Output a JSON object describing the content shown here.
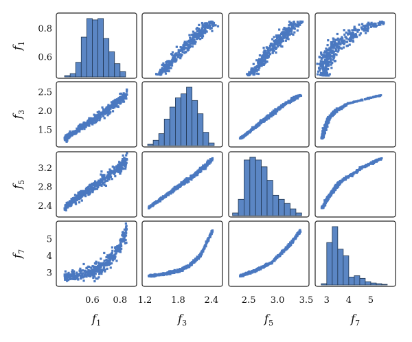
{
  "chart_data": {
    "type": "scatter",
    "subtype": "scatter-matrix",
    "title": "",
    "variables": [
      {
        "base": "f",
        "sub": "1",
        "ticks": [
          0.6,
          0.8
        ],
        "tick_labels": [
          "0.6",
          "0.8"
        ],
        "range": [
          0.36,
          0.9
        ],
        "ytick_labels": [
          "0.6",
          "0.8"
        ],
        "yrange": [
          0.47,
          0.89
        ]
      },
      {
        "base": "f",
        "sub": "3",
        "ticks": [
          1.2,
          1.8,
          2.4
        ],
        "tick_labels": [
          "1.2",
          "1.8",
          "2.4"
        ],
        "range": [
          1.2,
          2.55
        ],
        "yticks": [
          1.5,
          2.0,
          2.5
        ],
        "ytick_labels": [
          "1.5",
          "2.0",
          "2.5"
        ],
        "yrange": [
          1.12,
          2.7
        ]
      },
      {
        "base": "f",
        "sub": "5",
        "ticks": [
          2.5,
          3.0,
          3.5
        ],
        "tick_labels": [
          "2.5",
          "3.0",
          "3.5"
        ],
        "range": [
          2.2,
          3.5
        ],
        "yticks": [
          2.4,
          2.8,
          3.2
        ],
        "ytick_labels": [
          "2.4",
          "2.8",
          "3.2"
        ],
        "yrange": [
          2.22,
          3.48
        ]
      },
      {
        "base": "f",
        "sub": "7",
        "ticks": [
          3,
          4,
          5
        ],
        "tick_labels": [
          "3",
          "4",
          "5"
        ],
        "range": [
          2.6,
          6.0
        ],
        "yticks": [
          3,
          4,
          5
        ],
        "ytick_labels": [
          "3",
          "4",
          "5"
        ],
        "yrange": [
          2.35,
          5.9
        ]
      }
    ],
    "point_color": "#4a78c0",
    "bar_color": "#5b86c4",
    "bar_edge": "#1f3550",
    "diagonal": "histogram",
    "histograms": [
      {
        "var": "f1",
        "edges": [
          0.4,
          0.44,
          0.48,
          0.52,
          0.56,
          0.6,
          0.64,
          0.68,
          0.72,
          0.76,
          0.8,
          0.84
        ],
        "counts": [
          2,
          5,
          22,
          60,
          88,
          86,
          88,
          58,
          38,
          20,
          8
        ]
      },
      {
        "var": "f3",
        "edges": [
          1.25,
          1.35,
          1.45,
          1.55,
          1.65,
          1.75,
          1.85,
          1.95,
          2.05,
          2.15,
          2.25,
          2.35,
          2.45
        ],
        "counts": [
          2,
          8,
          18,
          40,
          58,
          72,
          78,
          88,
          68,
          48,
          20,
          4
        ]
      },
      {
        "var": "f5",
        "edges": [
          2.22,
          2.32,
          2.42,
          2.52,
          2.62,
          2.72,
          2.82,
          2.92,
          3.02,
          3.12,
          3.22,
          3.32,
          3.42
        ],
        "counts": [
          4,
          24,
          82,
          86,
          82,
          72,
          52,
          30,
          24,
          18,
          10,
          4
        ]
      },
      {
        "var": "f7",
        "edges": [
          2.75,
          3.0,
          3.25,
          3.5,
          3.75,
          4.0,
          4.25,
          4.5,
          4.75,
          5.0,
          5.25,
          5.5,
          5.75
        ],
        "counts": [
          2,
          64,
          88,
          54,
          44,
          12,
          14,
          10,
          5,
          3,
          2,
          1
        ]
      }
    ],
    "relationships": [
      {
        "x": "f1",
        "y": "f3",
        "curve": [
          [
            0.4,
            1.27
          ],
          [
            0.5,
            1.52
          ],
          [
            0.6,
            1.75
          ],
          [
            0.7,
            2.01
          ],
          [
            0.8,
            2.28
          ],
          [
            0.85,
            2.42
          ]
        ],
        "spread": 0.07
      },
      {
        "x": "f1",
        "y": "f5",
        "curve": [
          [
            0.4,
            2.36
          ],
          [
            0.5,
            2.58
          ],
          [
            0.6,
            2.77
          ],
          [
            0.7,
            3.0
          ],
          [
            0.8,
            3.22
          ],
          [
            0.85,
            3.36
          ]
        ],
        "spread": 0.07
      },
      {
        "x": "f1",
        "y": "f7",
        "curve": [
          [
            0.4,
            2.8
          ],
          [
            0.5,
            2.85
          ],
          [
            0.6,
            3.0
          ],
          [
            0.65,
            3.2
          ],
          [
            0.7,
            3.6
          ],
          [
            0.75,
            4.0
          ],
          [
            0.8,
            4.6
          ],
          [
            0.85,
            5.5
          ]
        ],
        "spread": 0.28
      },
      {
        "x": "f3",
        "y": "f5",
        "curve": [
          [
            1.27,
            2.36
          ],
          [
            1.5,
            2.55
          ],
          [
            1.8,
            2.8
          ],
          [
            2.1,
            3.05
          ],
          [
            2.42,
            3.38
          ]
        ],
        "spread": 0.025
      },
      {
        "x": "f3",
        "y": "f7",
        "curve": [
          [
            1.27,
            2.8
          ],
          [
            1.5,
            2.9
          ],
          [
            1.8,
            3.1
          ],
          [
            2.0,
            3.4
          ],
          [
            2.2,
            4.0
          ],
          [
            2.42,
            5.5
          ]
        ],
        "spread": 0.05
      },
      {
        "x": "f5",
        "y": "f7",
        "curve": [
          [
            2.35,
            2.8
          ],
          [
            2.6,
            3.1
          ],
          [
            2.9,
            3.6
          ],
          [
            3.2,
            4.6
          ],
          [
            3.4,
            5.5
          ]
        ],
        "spread": 0.05
      }
    ]
  }
}
